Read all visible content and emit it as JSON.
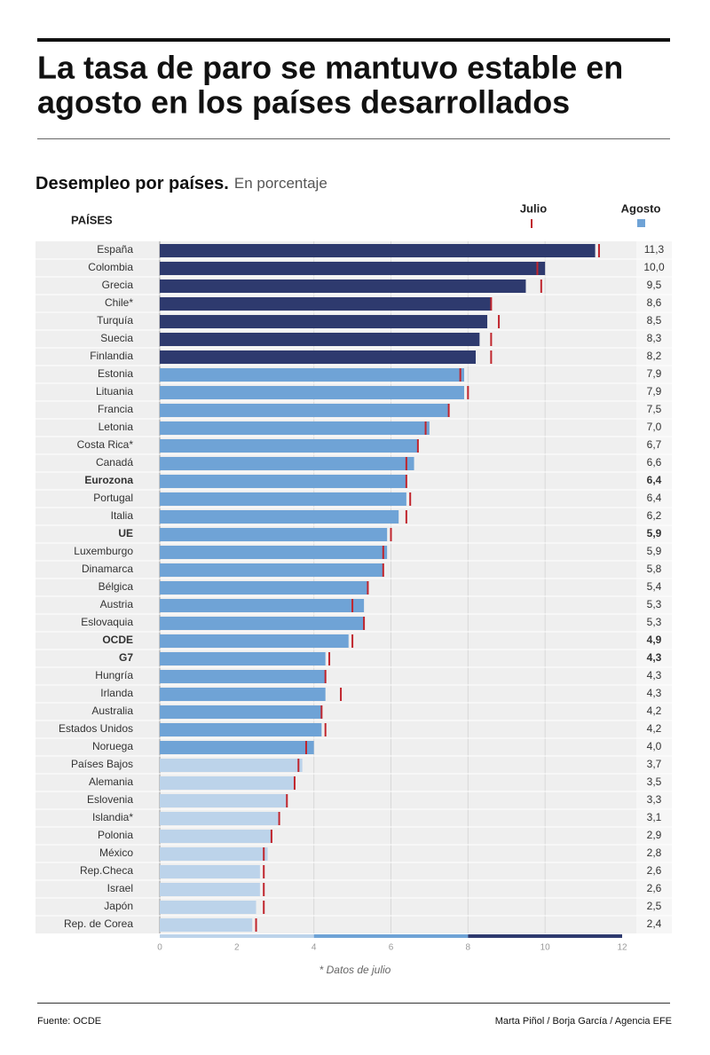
{
  "chart_data": {
    "type": "bar",
    "title": "La tasa de paro se mantuvo estable en agosto en los países desarrollados",
    "subtitle": "Desempleo por países.",
    "unit_note": "En porcentaje",
    "category_header": "PAÍSES",
    "categories": [
      "España",
      "Colombia",
      "Grecia",
      "Chile*",
      "Turquía",
      "Suecia",
      "Finlandia",
      "Estonia",
      "Lituania",
      "Francia",
      "Letonia",
      "Costa Rica*",
      "Canadá",
      "Eurozona",
      "Portugal",
      "Italia",
      "UE",
      "Luxemburgo",
      "Dinamarca",
      "Bélgica",
      "Austria",
      "Eslovaquia",
      "OCDE",
      "G7",
      "Hungría",
      "Irlanda",
      "Australia",
      "Estados Unidos",
      "Noruega",
      "Países Bajos",
      "Alemania",
      "Eslovenia",
      "Islandia*",
      "Polonia",
      "México",
      "Rep.Checa",
      "Israel",
      "Japón",
      "Rep. de Corea"
    ],
    "bold": [
      false,
      false,
      false,
      false,
      false,
      false,
      false,
      false,
      false,
      false,
      false,
      false,
      false,
      true,
      false,
      false,
      true,
      false,
      false,
      false,
      false,
      false,
      true,
      true,
      false,
      false,
      false,
      false,
      false,
      false,
      false,
      false,
      false,
      false,
      false,
      false,
      false,
      false,
      false
    ],
    "series": [
      {
        "name": "Agosto",
        "color": "#6fa3d6",
        "values": [
          11.3,
          10.0,
          9.5,
          8.6,
          8.5,
          8.3,
          8.2,
          7.9,
          7.9,
          7.5,
          7.0,
          6.7,
          6.6,
          6.4,
          6.4,
          6.2,
          5.9,
          5.9,
          5.8,
          5.4,
          5.3,
          5.3,
          4.9,
          4.3,
          4.3,
          4.3,
          4.2,
          4.2,
          4.0,
          3.7,
          3.5,
          3.3,
          3.1,
          2.9,
          2.8,
          2.6,
          2.6,
          2.5,
          2.4
        ],
        "value_labels": [
          "11,3",
          "10,0",
          "9,5",
          "8,6",
          "8,5",
          "8,3",
          "8,2",
          "7,9",
          "7,9",
          "7,5",
          "7,0",
          "6,7",
          "6,6",
          "6,4",
          "6,4",
          "6,2",
          "5,9",
          "5,9",
          "5,8",
          "5,4",
          "5,3",
          "5,3",
          "4,9",
          "4,3",
          "4,3",
          "4,3",
          "4,2",
          "4,2",
          "4,0",
          "3,7",
          "3,5",
          "3,3",
          "3,1",
          "2,9",
          "2,8",
          "2,6",
          "2,6",
          "2,5",
          "2,4"
        ]
      },
      {
        "name": "Julio",
        "color": "#c0252d",
        "values": [
          11.4,
          9.8,
          9.9,
          8.6,
          8.8,
          8.6,
          8.6,
          7.8,
          8.0,
          7.5,
          6.9,
          6.7,
          6.4,
          6.4,
          6.5,
          6.4,
          6.0,
          5.8,
          5.8,
          5.4,
          5.0,
          5.3,
          5.0,
          4.4,
          4.3,
          4.7,
          4.2,
          4.3,
          3.8,
          3.6,
          3.5,
          3.3,
          3.1,
          2.9,
          2.7,
          2.7,
          2.7,
          2.7,
          2.5
        ]
      }
    ],
    "color_bands": [
      {
        "from": 0,
        "to": 4,
        "color": "#bcd3ea"
      },
      {
        "from": 4,
        "to": 8,
        "color": "#6fa3d6"
      },
      {
        "from": 8,
        "to": 12,
        "color": "#2e3a6e"
      }
    ],
    "xlim": [
      0,
      12
    ],
    "xticks": [
      0,
      2,
      4,
      6,
      8,
      10,
      12
    ],
    "grid_ticks": [
      4,
      6,
      8,
      10
    ],
    "footnote": "* Datos de julio",
    "source": "Fuente: OCDE",
    "credit": "Marta Piñol / Borja García / Agencia EFE"
  }
}
